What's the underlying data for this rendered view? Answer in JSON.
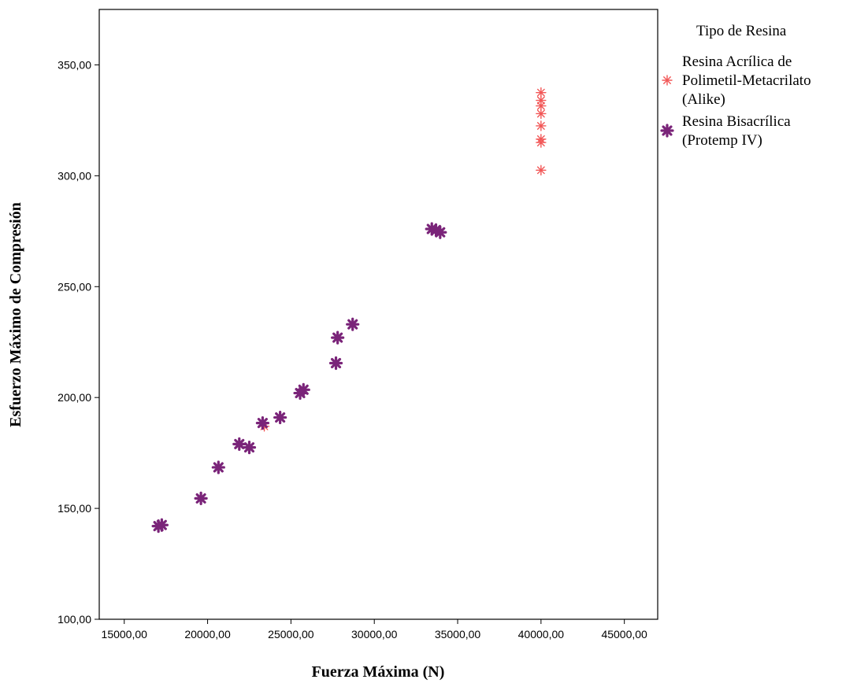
{
  "chart_data": {
    "type": "scatter",
    "xlabel": "Fuerza Máxima (N)",
    "ylabel": "Esfuerzo Máximo de Compresión",
    "xlim": [
      13500,
      47000
    ],
    "ylim": [
      100,
      375
    ],
    "x_ticks": [
      {
        "value": 15000,
        "label": "15000,00"
      },
      {
        "value": 20000,
        "label": "20000,00"
      },
      {
        "value": 25000,
        "label": "25000,00"
      },
      {
        "value": 30000,
        "label": "30000,00"
      },
      {
        "value": 35000,
        "label": "35000,00"
      },
      {
        "value": 40000,
        "label": "40000,00"
      },
      {
        "value": 45000,
        "label": "45000,00"
      }
    ],
    "y_ticks": [
      {
        "value": 100,
        "label": "100,00"
      },
      {
        "value": 150,
        "label": "150,00"
      },
      {
        "value": 200,
        "label": "200,00"
      },
      {
        "value": 250,
        "label": "250,00"
      },
      {
        "value": 300,
        "label": "300,00"
      },
      {
        "value": 350,
        "label": "350,00"
      }
    ],
    "grid": false,
    "legend": {
      "title": "Tipo de Resina",
      "placement": "right",
      "entries": [
        {
          "lines": [
            "Resina Acrílica de",
            "Polimetil-Metacrilato",
            "(Alike)"
          ],
          "series": 0
        },
        {
          "lines": [
            "Resina Bisacrílica",
            "(Protemp IV)"
          ],
          "series": 1
        }
      ]
    },
    "series": [
      {
        "name": "Resina Acrílica de Polimetil-Metacrilato (Alike)",
        "color": "#f25757",
        "marker": "thin-star",
        "points": [
          [
            40000,
            337.5
          ],
          [
            40000,
            334.0
          ],
          [
            40000,
            331.5
          ],
          [
            40000,
            328.0
          ],
          [
            40000,
            322.5
          ],
          [
            40000,
            316.5
          ],
          [
            40000,
            315.0
          ],
          [
            40000,
            302.5
          ],
          [
            23400,
            187.0
          ]
        ]
      },
      {
        "name": "Resina Bisacrílica (Protemp IV)",
        "color": "#7a2479",
        "marker": "bold-star",
        "points": [
          [
            17050,
            142.0
          ],
          [
            17250,
            142.5
          ],
          [
            19600,
            154.5
          ],
          [
            20650,
            168.5
          ],
          [
            21900,
            179.0
          ],
          [
            22500,
            177.5
          ],
          [
            23300,
            188.5
          ],
          [
            24350,
            191.0
          ],
          [
            25550,
            202.0
          ],
          [
            25750,
            203.5
          ],
          [
            27700,
            215.5
          ],
          [
            27800,
            227.0
          ],
          [
            28700,
            233.0
          ],
          [
            33450,
            276.0
          ],
          [
            33700,
            275.5
          ],
          [
            33950,
            274.5
          ]
        ]
      }
    ]
  }
}
